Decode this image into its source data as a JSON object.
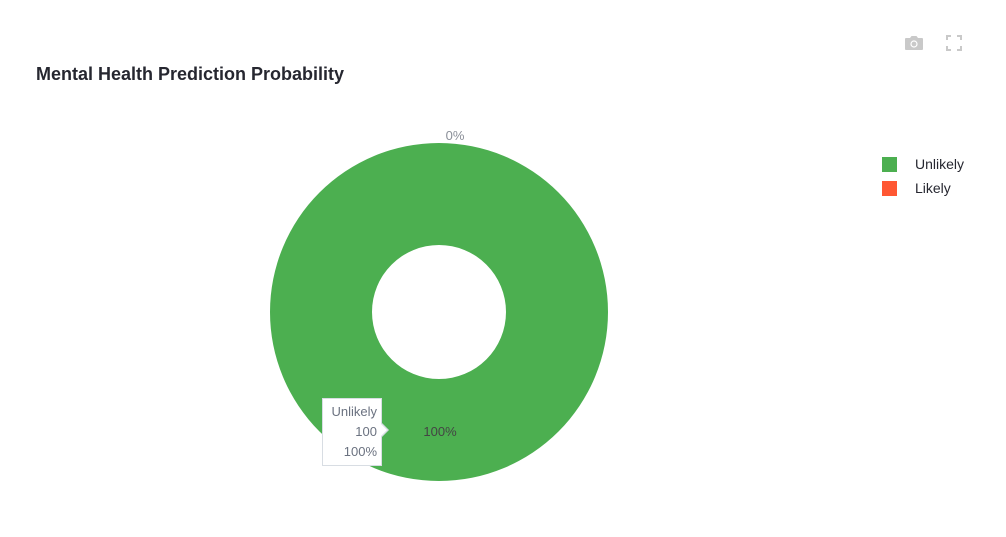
{
  "toolbar": {
    "camera_icon": "camera-icon",
    "fullscreen_icon": "fullscreen-icon"
  },
  "chart_data": {
    "type": "pie",
    "title": "Mental Health Prediction Probability",
    "hole": true,
    "categories": [
      "Unlikely",
      "Likely"
    ],
    "values": [
      100,
      0
    ],
    "value_labels": [
      "100%",
      "0%"
    ],
    "colors": [
      "#4caf50",
      "#ff5733"
    ],
    "legend_position": "top-right",
    "hover": {
      "label": "Unlikely",
      "value": "100",
      "percent": "100%"
    }
  }
}
